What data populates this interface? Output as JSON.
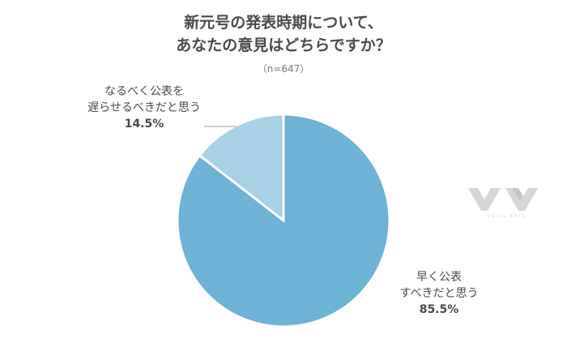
{
  "title_line1": "新元号の発表時期について、",
  "title_line2": "あなたの意見はどちらですか？",
  "subtitle": "（n=647）",
  "logo_text": "VOICE NOTE",
  "chart_data": {
    "type": "pie",
    "title": "新元号の発表時期について、あなたの意見はどちらですか？",
    "n": 647,
    "slices": [
      {
        "label_line1": "早く公表",
        "label_line2": "すべきだと思う",
        "value": 85.5,
        "value_label": "85.5%",
        "color": "#6cb3d6"
      },
      {
        "label_line1": "なるべく公表を",
        "label_line2": "遅らせるべきだと思う",
        "value": 14.5,
        "value_label": "14.5%",
        "color": "#a7d1e5"
      }
    ],
    "start_angle_deg": 0,
    "direction": "clockwise",
    "legend": "none"
  }
}
